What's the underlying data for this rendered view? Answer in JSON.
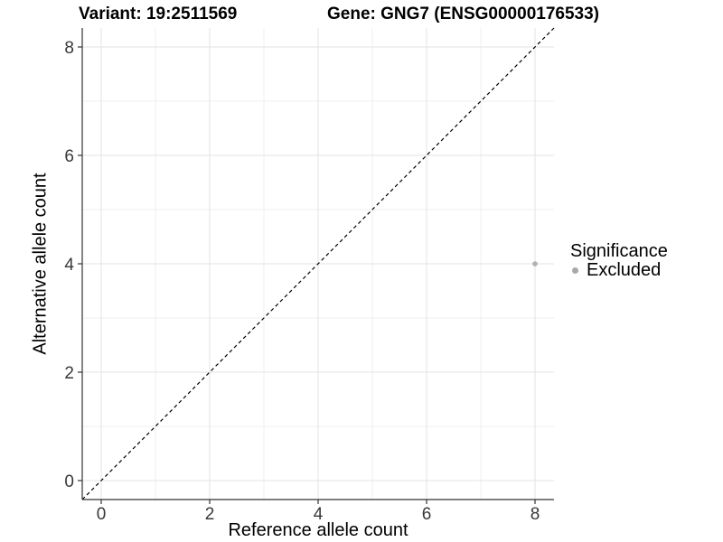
{
  "chart_data": {
    "type": "scatter",
    "titles": {
      "variant": "Variant: 19:2511569",
      "gene": "Gene: GNG7 (ENSG00000176533)"
    },
    "xlabel": "Reference allele count",
    "ylabel": "Alternative allele count",
    "xlim": [
      -0.35,
      8.35
    ],
    "ylim": [
      -0.35,
      8.35
    ],
    "x_ticks": {
      "major": [
        0,
        2,
        4,
        6,
        8
      ],
      "minor": [
        1,
        3,
        5,
        7
      ]
    },
    "y_ticks": {
      "major": [
        0,
        2,
        4,
        6,
        8
      ],
      "minor": [
        1,
        3,
        5,
        7
      ]
    },
    "grid": "major_and_minor",
    "identity_line": {
      "style": "dashed",
      "from": [
        -0.35,
        -0.35
      ],
      "to": [
        8.35,
        8.35
      ],
      "color": "#000000"
    },
    "series": [
      {
        "name": "Excluded",
        "color": "#b0b0b0",
        "point_radius": 2.8,
        "points": [
          {
            "x": 8,
            "y": 4
          }
        ]
      }
    ],
    "legend": {
      "title": "Significance",
      "position": "right",
      "entries": [
        {
          "label": "Excluded",
          "color": "#a9a9a9"
        }
      ]
    },
    "colors": {
      "background": "#ffffff",
      "axis_line": "#333333",
      "tick_mark": "#333333",
      "tick_label": "#383838",
      "grid_major": "#e3e3e3",
      "grid_minor": "#efefef"
    }
  }
}
